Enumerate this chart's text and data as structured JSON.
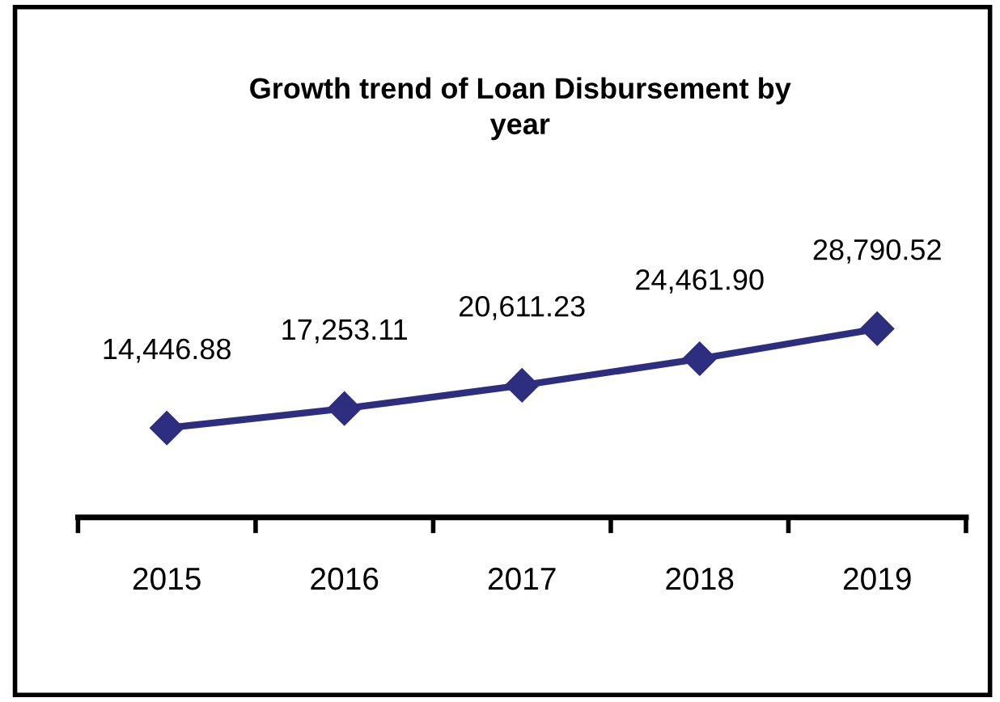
{
  "chart_data": {
    "type": "line",
    "title": "Growth trend of Loan Disbursement by\nyear",
    "categories": [
      "2015",
      "2016",
      "2017",
      "2018",
      "2019"
    ],
    "series": [
      {
        "color": "#2e2e80",
        "values": [
          14446.88,
          17253.11,
          20611.23,
          24461.9,
          28790.52
        ],
        "value_labels": [
          "14,446.88",
          "17,253.11",
          "20,611.23",
          "24,461.90",
          "28,790.52"
        ]
      }
    ],
    "marker": "diamond",
    "line_style": "solid",
    "grid": false,
    "legend": false,
    "tick_labels": "x"
  }
}
